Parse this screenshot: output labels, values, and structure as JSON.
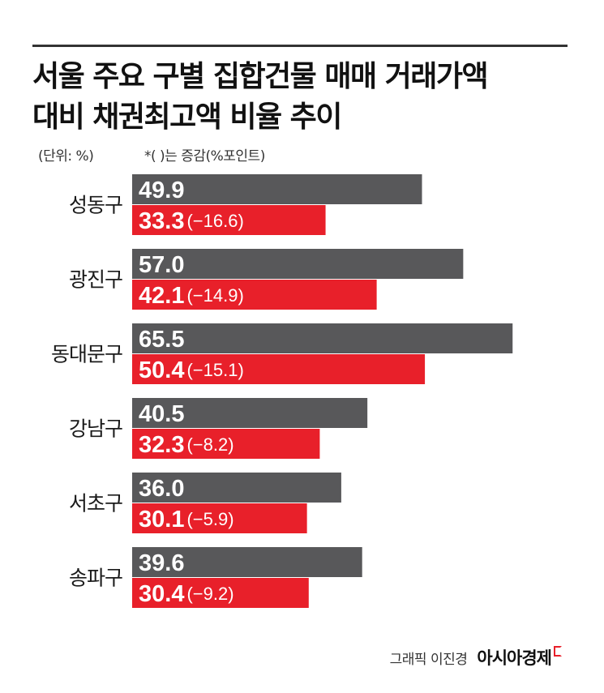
{
  "title_lines": [
    "서울 주요 구별 집합건물 매매 거래가액",
    "대비 채권최고액 비율 추이"
  ],
  "notes": {
    "unit": "(단위: %)",
    "change": "*(    )는 증감(%포인트)"
  },
  "credit": {
    "text": "그래픽 이진경",
    "brand": "아시아경제"
  },
  "colors": {
    "before": "#58585a",
    "after": "#e8202a"
  },
  "chart_data": {
    "type": "bar",
    "orientation": "horizontal",
    "categories": [
      "성동구",
      "광진구",
      "동대문구",
      "강남구",
      "서초구",
      "송파구"
    ],
    "series": [
      {
        "values": [
          49.9,
          57.0,
          65.5,
          40.5,
          36.0,
          39.6
        ],
        "labels": [
          "49.9",
          "57.0",
          "65.5",
          "40.5",
          "36.0",
          "39.6"
        ]
      },
      {
        "values": [
          33.3,
          42.1,
          50.4,
          32.3,
          30.1,
          30.4
        ],
        "labels": [
          "33.3",
          "42.1",
          "50.4",
          "32.3",
          "30.1",
          "30.4"
        ]
      }
    ],
    "changes": [
      "(−16.6)",
      "(−14.9)",
      "(−15.1)",
      "(−8.2)",
      "(−5.9)",
      "(−9.2)"
    ],
    "change_values": [
      -16.6,
      -14.9,
      -15.1,
      -8.2,
      -5.9,
      -9.2
    ],
    "xlim": [
      0,
      67
    ],
    "grid": false,
    "legend": "none"
  }
}
